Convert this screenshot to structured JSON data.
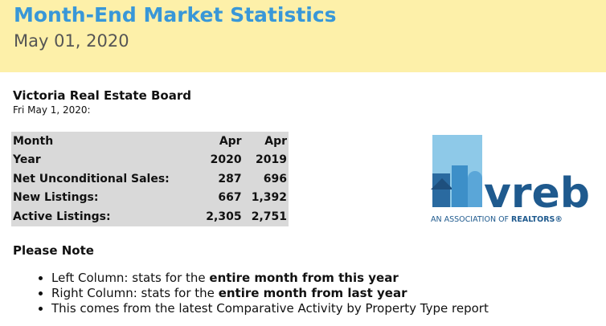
{
  "header": {
    "title": "Month-End Market Statistics",
    "date": "May 01, 2020"
  },
  "board": {
    "name": "Victoria Real Estate Board",
    "date": "Fri May 1, 2020:"
  },
  "table": {
    "rows": [
      [
        "Month",
        "Apr",
        "Apr"
      ],
      [
        "Year",
        "2020",
        "2019"
      ],
      [
        "Net Unconditional Sales:",
        "287",
        "696"
      ],
      [
        "New Listings:",
        "667",
        "1,392"
      ],
      [
        "Active Listings:",
        "2,305",
        "2,751"
      ]
    ]
  },
  "logo": {
    "word": "vreb",
    "tagline": "AN ASSOCIATION OF",
    "tagline_bold": "REALTORS®"
  },
  "notes": {
    "title": "Please Note",
    "items": [
      {
        "text": "Left Column: stats for the",
        "bold": "entire month from this year"
      },
      {
        "text": "Right Column: stats for the",
        "bold": "entire month from last year"
      },
      {
        "text": "This comes from the latest Comparative Activity by Property Type report"
      }
    ]
  }
}
